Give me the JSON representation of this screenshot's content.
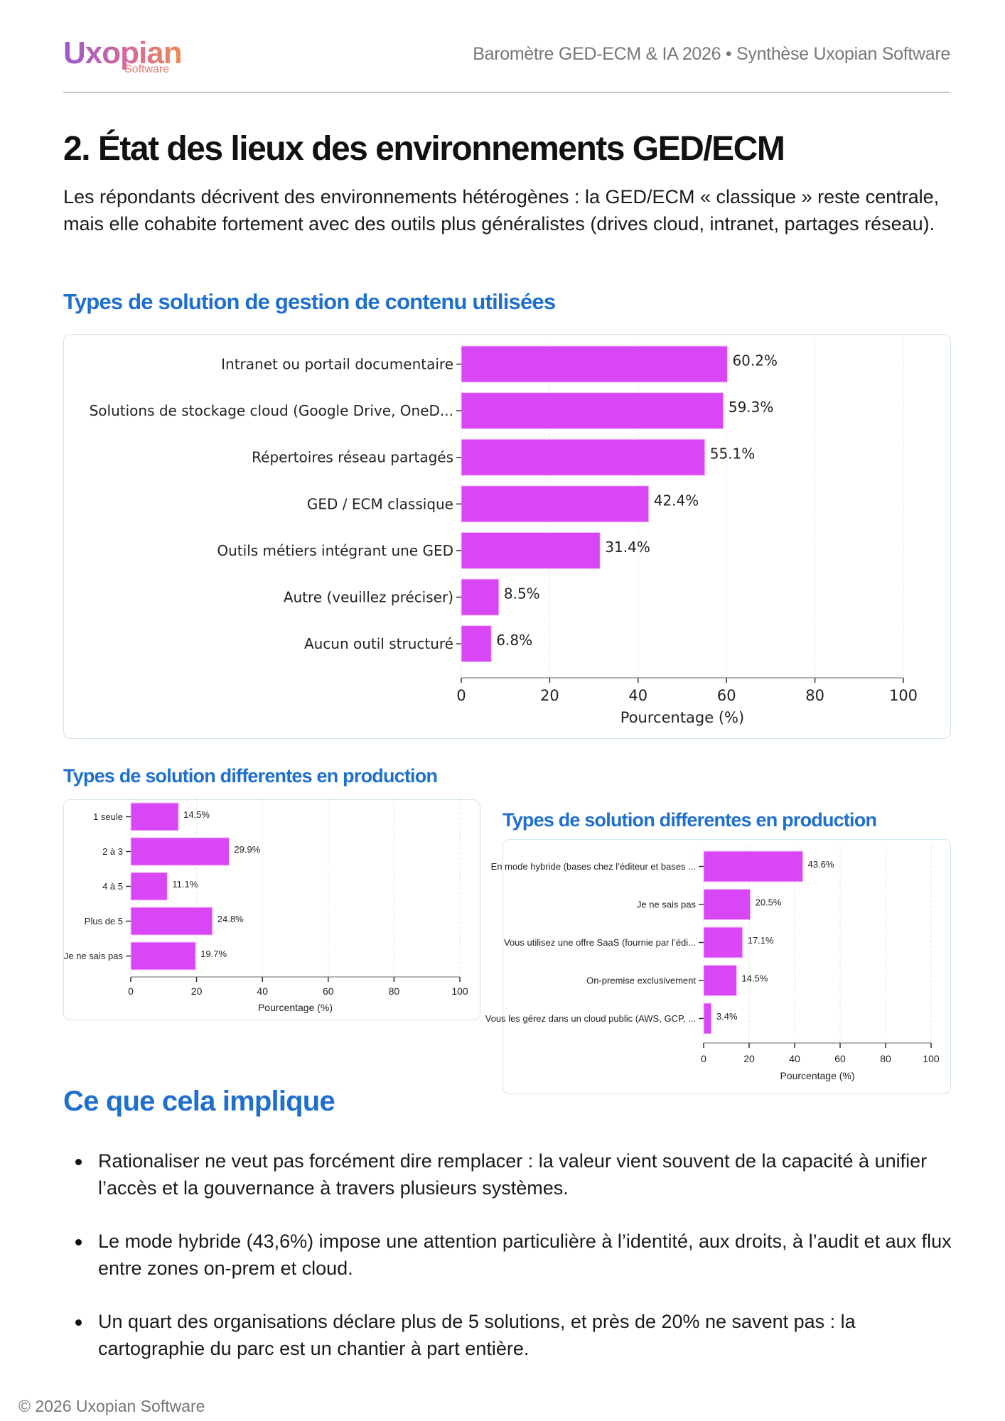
{
  "header": {
    "logo_text": "Uxopian",
    "logo_sub": "Software",
    "title": "Baromètre GED-ECM & IA 2026 • Synthèse Uxopian Software"
  },
  "section": {
    "title": "2. État des lieux des environnements GED/ECM",
    "intro": "Les répondants décrivent des environnements hétérogènes : la GED/ECM « classique » reste centrale, mais elle cohabite fortement avec des outils plus généralistes (drives cloud, intranet, partages réseau).",
    "chart1_heading": "Types de solution de gestion de contenu utilisées",
    "chart2_heading": "Types de solution differentes en production",
    "chart3_heading": "Types de solution differentes en production",
    "implications_heading": "Ce que cela implique",
    "bullets": [
      "Rationaliser ne veut pas forcément dire remplacer : la valeur vient souvent de la capacité à unifier l’accès et la gouvernance à travers plusieurs systèmes.",
      "Le mode hybride (43,6%) impose une attention particulière à l’identité, aux droits, à l’audit et aux flux entre zones on-prem et cloud.",
      "Un quart des organisations déclare plus de 5 solutions, et près de 20% ne savent pas : la cartographie du parc est un chantier à part entière."
    ]
  },
  "footer": "© 2026 Uxopian Software",
  "colors": {
    "bar": "#d946f5",
    "heading": "#1f6fcf"
  },
  "chart_data": [
    {
      "type": "bar",
      "orientation": "horizontal",
      "categories": [
        "Intranet ou portail documentaire",
        "Solutions de stockage cloud (Google Drive, OneD...",
        "Répertoires réseau partagés",
        "GED / ECM classique",
        "Outils métiers intégrant une GED",
        "Autre (veuillez préciser)",
        "Aucun outil structuré"
      ],
      "values": [
        60.2,
        59.3,
        55.1,
        42.4,
        31.4,
        8.5,
        6.8
      ],
      "value_labels": [
        "60.2%",
        "59.3%",
        "55.1%",
        "42.4%",
        "31.4%",
        "8.5%",
        "6.8%"
      ],
      "xlabel": "Pourcentage (%)",
      "xlim": [
        0,
        100
      ],
      "xticks": [
        "0",
        "20",
        "40",
        "60",
        "80",
        "100"
      ],
      "grid": "vertical dashed"
    },
    {
      "type": "bar",
      "orientation": "horizontal",
      "categories": [
        "1 seule",
        "2 à 3",
        "4 à 5",
        "Plus de 5",
        "Je ne sais pas"
      ],
      "values": [
        14.5,
        29.9,
        11.1,
        24.8,
        19.7
      ],
      "value_labels": [
        "14.5%",
        "29.9%",
        "11.1%",
        "24.8%",
        "19.7%"
      ],
      "xlabel": "Pourcentage (%)",
      "xlim": [
        0,
        100
      ],
      "xticks": [
        "0",
        "20",
        "40",
        "60",
        "80",
        "100"
      ],
      "grid": "vertical dashed"
    },
    {
      "type": "bar",
      "orientation": "horizontal",
      "categories": [
        "En mode hybride (bases chez l’éditeur et bases ...",
        "Je ne sais pas",
        "Vous utilisez une offre SaaS (fournie par l’édi...",
        "On-premise exclusivement",
        "Vous les gérez dans un cloud public (AWS, GCP, ..."
      ],
      "values": [
        43.6,
        20.5,
        17.1,
        14.5,
        3.4
      ],
      "value_labels": [
        "43.6%",
        "20.5%",
        "17.1%",
        "14.5%",
        "3.4%"
      ],
      "xlabel": "Pourcentage (%)",
      "xlim": [
        0,
        100
      ],
      "xticks": [
        "0",
        "20",
        "40",
        "60",
        "80",
        "100"
      ],
      "grid": "vertical dashed"
    }
  ]
}
